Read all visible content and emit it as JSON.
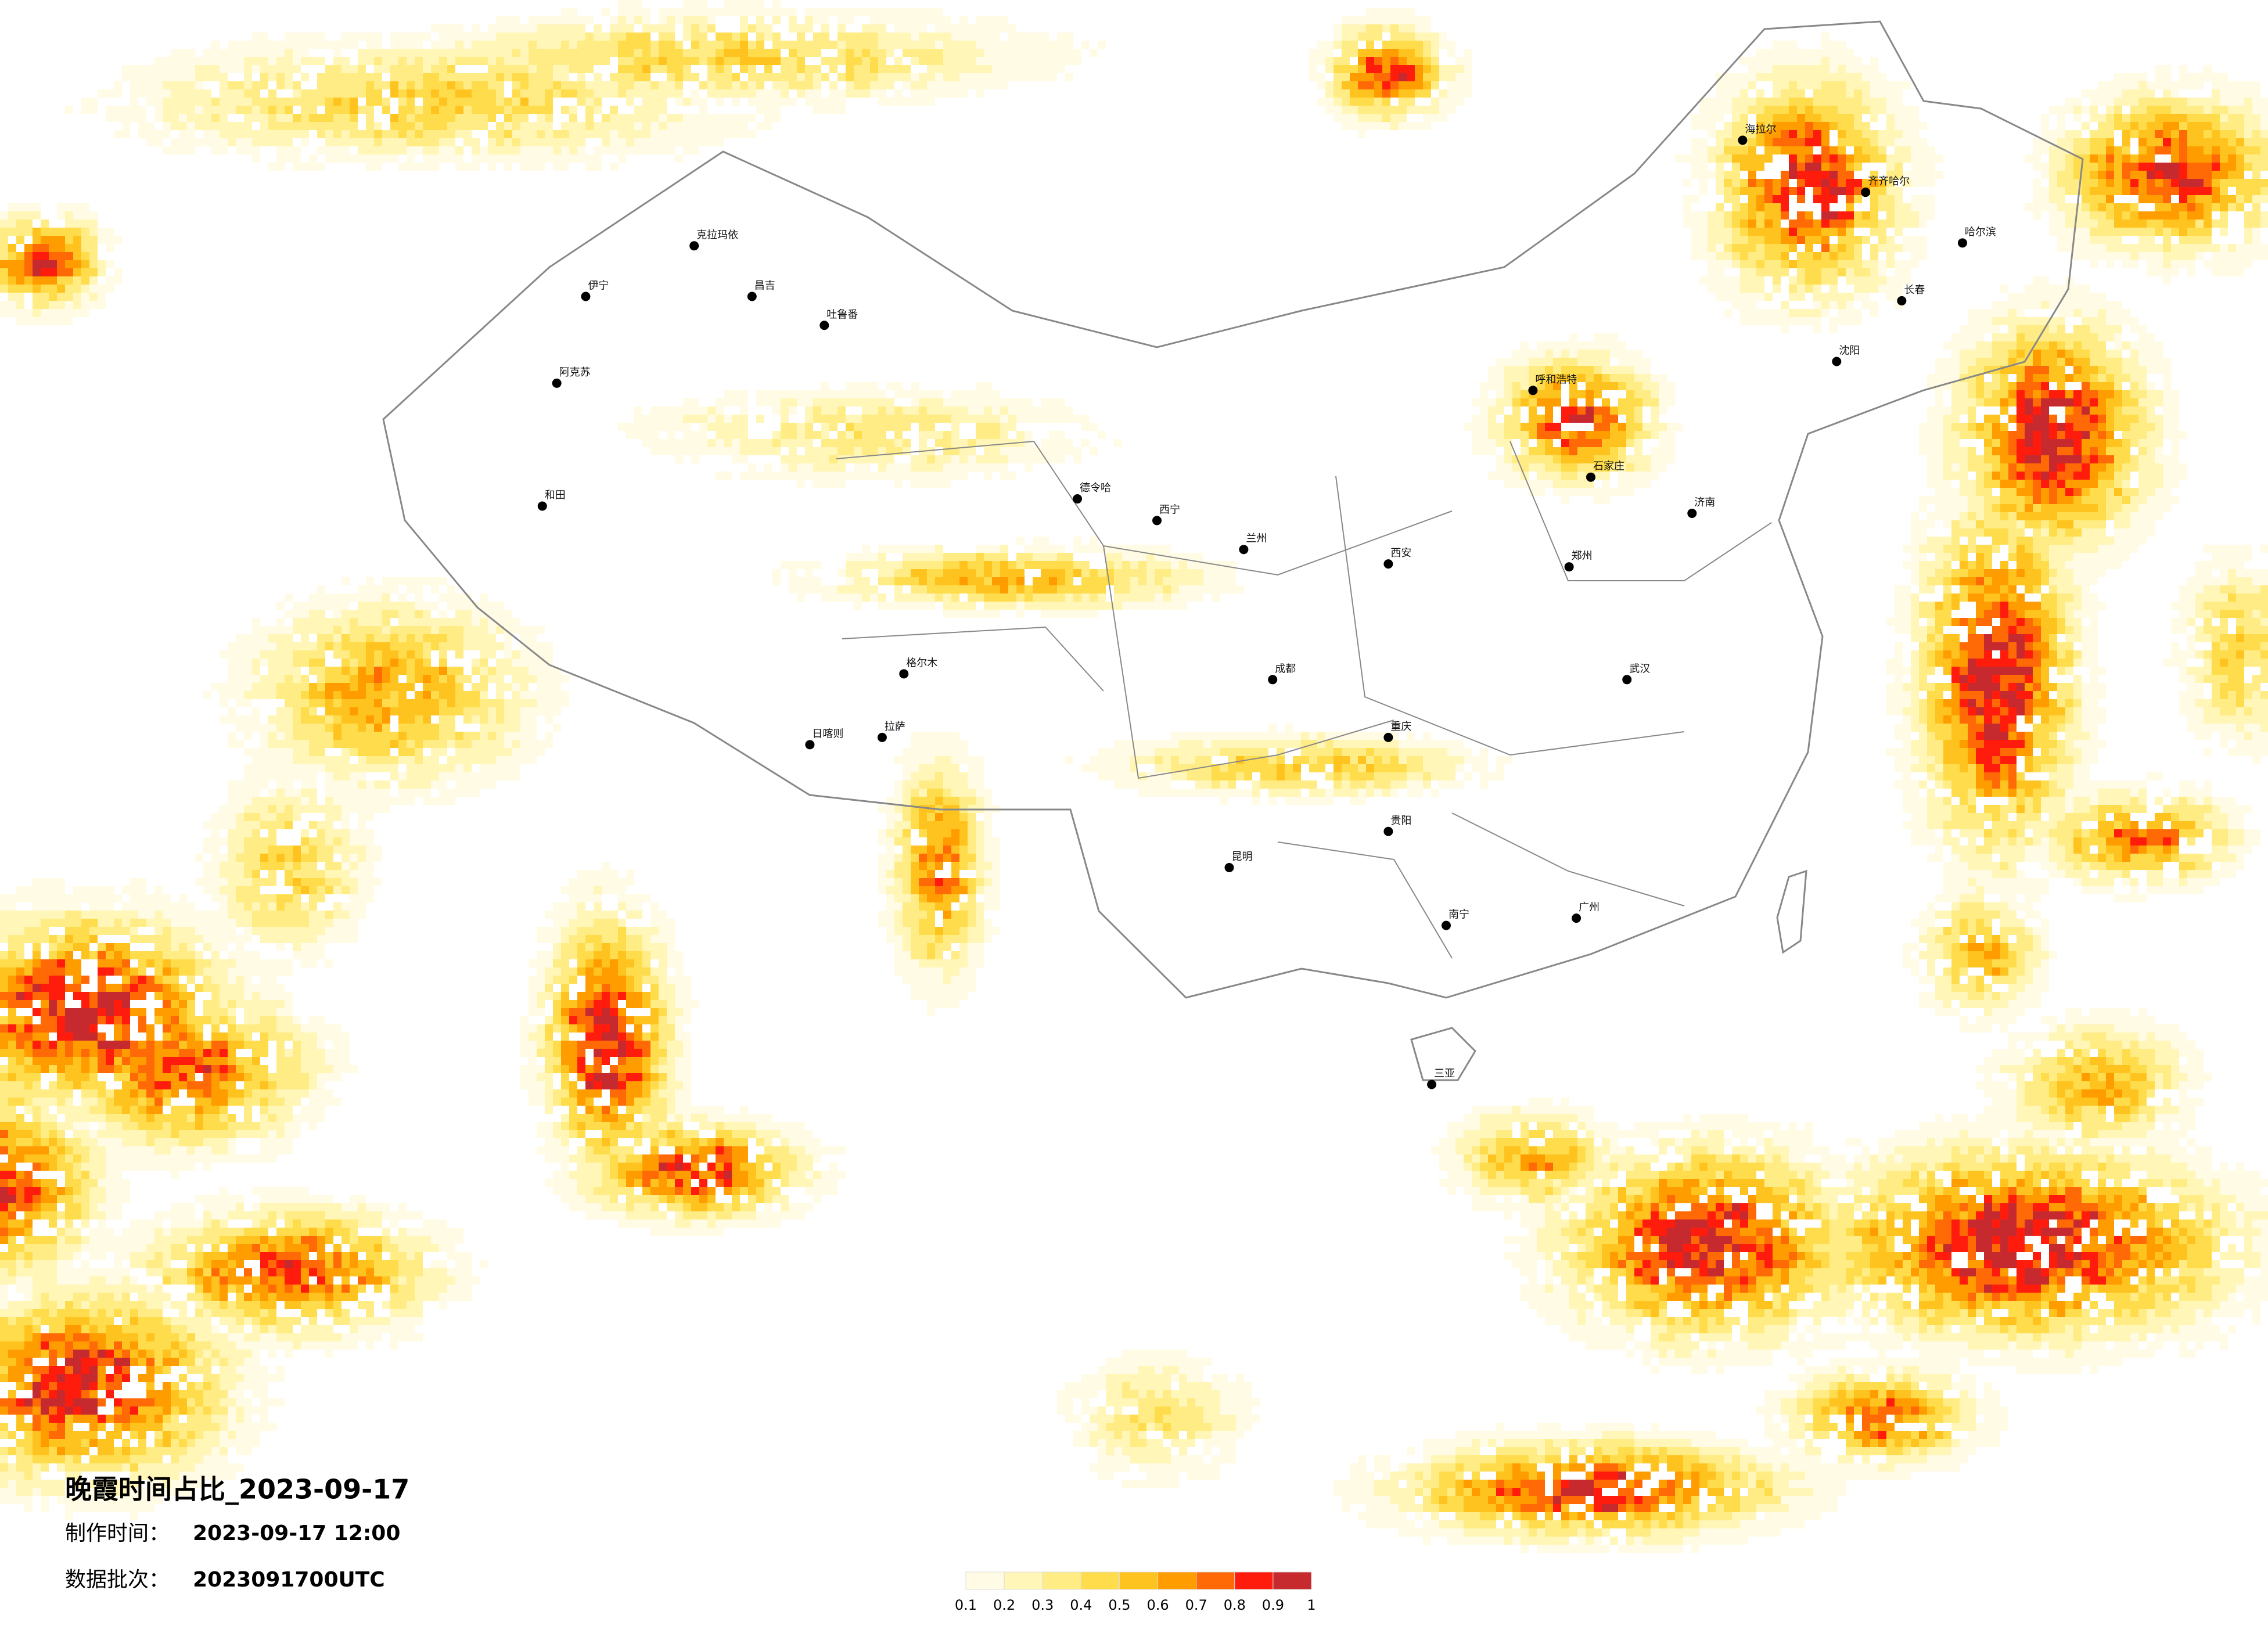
{
  "header": {
    "title": "晚霞时间占比_2023-09-17",
    "made_label": "制作时间：",
    "made_time": "2023-09-17 12:00",
    "batch_label": "数据批次：",
    "batch": "2023091700UTC"
  },
  "colorbar": {
    "ticks": [
      0.1,
      0.2,
      0.3,
      0.4,
      0.5,
      0.6,
      0.7,
      0.8,
      0.9,
      1
    ],
    "colors": [
      "#fffbe4",
      "#fff6b8",
      "#ffec84",
      "#ffdc4c",
      "#ffc320",
      "#ff9c00",
      "#ff6a06",
      "#ff1c0c",
      "#c62a2f"
    ]
  },
  "cities": [
    "海拉尔",
    "齐齐哈尔",
    "哈尔滨",
    "长春",
    "沈阳",
    "呼和浩特",
    "石家庄",
    "济南",
    "郑州",
    "西安",
    "兰州",
    "西宁",
    "成都",
    "重庆",
    "贵阳",
    "昆明",
    "南宁",
    "广州",
    "武汉",
    "拉萨",
    "日喀则",
    "格尔木",
    "德令哈",
    "伊宁",
    "克拉玛依",
    "昌吉",
    "吐鲁番",
    "阿克苏",
    "和田",
    "三亚"
  ]
}
